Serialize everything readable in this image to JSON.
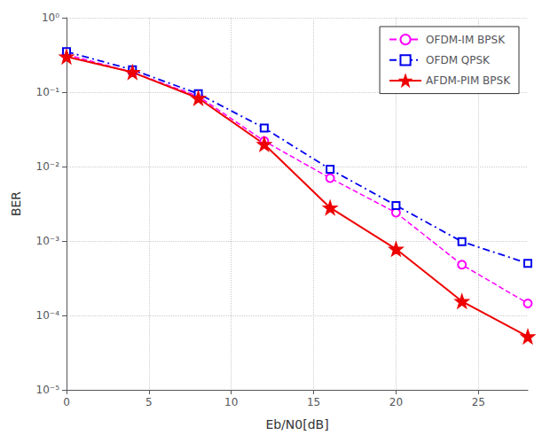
{
  "chart_data": {
    "type": "line",
    "xlabel": "Eb/N0[dB]",
    "ylabel": "BER",
    "x": [
      0,
      4,
      8,
      12,
      16,
      20,
      24,
      28
    ],
    "series": [
      {
        "name": "OFDM-IM BPSK",
        "color": "#FF00FF",
        "marker": "circle",
        "line_style": "dashed",
        "values": [
          0.32,
          0.185,
          0.088,
          0.022,
          0.007,
          0.0024,
          0.00048,
          0.000145
        ]
      },
      {
        "name": "OFDM QPSK",
        "color": "#0000EE",
        "marker": "square",
        "line_style": "dashdot",
        "values": [
          0.35,
          0.2,
          0.095,
          0.033,
          0.0092,
          0.003,
          0.00098,
          0.0005
        ]
      },
      {
        "name": "AFDM-PIM BPSK",
        "color": "#EE0000",
        "marker": "star",
        "line_style": "solid",
        "values": [
          0.3,
          0.185,
          0.083,
          0.02,
          0.0028,
          0.00078,
          0.000155,
          5.2e-05
        ]
      }
    ],
    "xlim": [
      0,
      28
    ],
    "xticks": [
      0,
      5,
      10,
      15,
      20,
      25
    ],
    "ylim": [
      1e-05,
      1
    ],
    "yticks": [
      {
        "value": 1e-05,
        "label": "10⁻⁵"
      },
      {
        "value": 0.0001,
        "label": "10⁻⁴"
      },
      {
        "value": 0.001,
        "label": "10⁻³"
      },
      {
        "value": 0.01,
        "label": "10⁻²"
      },
      {
        "value": 0.1,
        "label": "10⁻¹"
      },
      {
        "value": 1,
        "label": "10⁰"
      }
    ],
    "log": "y",
    "grid": true,
    "legend": "upper right"
  }
}
